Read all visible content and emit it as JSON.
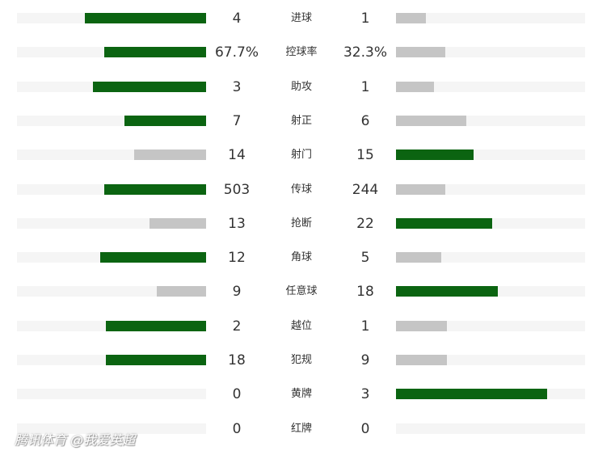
{
  "colors": {
    "leading": "#0b6411",
    "trailing": "#c5c5c5",
    "track": "#f5f5f5"
  },
  "watermark": "腾讯体育 @我爱英超",
  "stats": [
    {
      "label": "进球",
      "home": "4",
      "away": "1",
      "home_share": 0.64,
      "away_share": 0.16,
      "leader": "home"
    },
    {
      "label": "控球率",
      "home": "67.7%",
      "away": "32.3%",
      "home_share": 0.54,
      "away_share": 0.26,
      "leader": "home"
    },
    {
      "label": "助攻",
      "home": "3",
      "away": "1",
      "home_share": 0.6,
      "away_share": 0.2,
      "leader": "home"
    },
    {
      "label": "射正",
      "home": "7",
      "away": "6",
      "home_share": 0.43,
      "away_share": 0.37,
      "leader": "home"
    },
    {
      "label": "射门",
      "home": "14",
      "away": "15",
      "home_share": 0.38,
      "away_share": 0.41,
      "leader": "away"
    },
    {
      "label": "传球",
      "home": "503",
      "away": "244",
      "home_share": 0.54,
      "away_share": 0.26,
      "leader": "home"
    },
    {
      "label": "抢断",
      "home": "13",
      "away": "22",
      "home_share": 0.3,
      "away_share": 0.51,
      "leader": "away"
    },
    {
      "label": "角球",
      "home": "12",
      "away": "5",
      "home_share": 0.56,
      "away_share": 0.24,
      "leader": "home"
    },
    {
      "label": "任意球",
      "home": "9",
      "away": "18",
      "home_share": 0.26,
      "away_share": 0.54,
      "leader": "away"
    },
    {
      "label": "越位",
      "home": "2",
      "away": "1",
      "home_share": 0.53,
      "away_share": 0.27,
      "leader": "home"
    },
    {
      "label": "犯规",
      "home": "18",
      "away": "9",
      "home_share": 0.53,
      "away_share": 0.27,
      "leader": "home"
    },
    {
      "label": "黄牌",
      "home": "0",
      "away": "3",
      "home_share": 0.0,
      "away_share": 0.8,
      "leader": "away"
    },
    {
      "label": "红牌",
      "home": "0",
      "away": "0",
      "home_share": 0.0,
      "away_share": 0.0,
      "leader": "none"
    }
  ]
}
